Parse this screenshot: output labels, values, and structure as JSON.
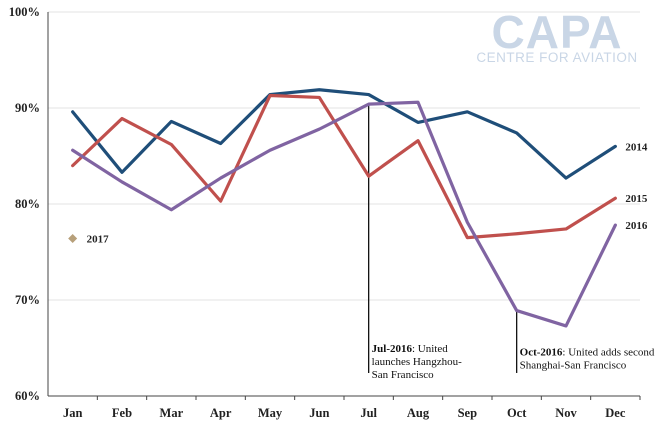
{
  "logo": {
    "main": "CAPA",
    "sub": "CENTRE FOR AVIATION"
  },
  "chart_data": {
    "type": "line",
    "categories": [
      "Jan",
      "Feb",
      "Mar",
      "Apr",
      "May",
      "Jun",
      "Jul",
      "Aug",
      "Sep",
      "Oct",
      "Nov",
      "Dec"
    ],
    "ylim": [
      60,
      100
    ],
    "yticks": [
      60,
      70,
      80,
      90,
      100
    ],
    "ytick_labels": [
      "60%",
      "70%",
      "80%",
      "90%",
      "100%"
    ],
    "grid": "horizontal",
    "series": [
      {
        "name": "2014",
        "color": "#1f4e79",
        "values": [
          89.6,
          83.3,
          88.6,
          86.3,
          91.4,
          91.9,
          91.4,
          88.5,
          89.6,
          87.4,
          82.7,
          86.0
        ]
      },
      {
        "name": "2015",
        "color": "#c0504d",
        "values": [
          84.0,
          88.9,
          86.2,
          80.3,
          91.3,
          91.1,
          82.9,
          86.6,
          76.5,
          76.9,
          77.4,
          80.6
        ]
      },
      {
        "name": "2016",
        "color": "#8064a2",
        "values": [
          85.6,
          82.3,
          79.4,
          82.7,
          85.6,
          87.8,
          90.4,
          90.6,
          78.1,
          68.9,
          67.3,
          77.8
        ]
      },
      {
        "name": "2017",
        "color": "#b7a07a",
        "marker": "diamond",
        "values": [
          76.4,
          null,
          null,
          null,
          null,
          null,
          null,
          null,
          null,
          null,
          null,
          null
        ]
      }
    ],
    "annotations": [
      {
        "category": "Jul",
        "bold": "Jul-2016",
        "text": ": United",
        "lines": [
          "launches Hangzhou-",
          "San Francisco"
        ]
      },
      {
        "category": "Oct",
        "bold": "Oct-2016",
        "text": ": United adds second",
        "lines": [
          "Shanghai-San Francisco"
        ]
      }
    ]
  }
}
